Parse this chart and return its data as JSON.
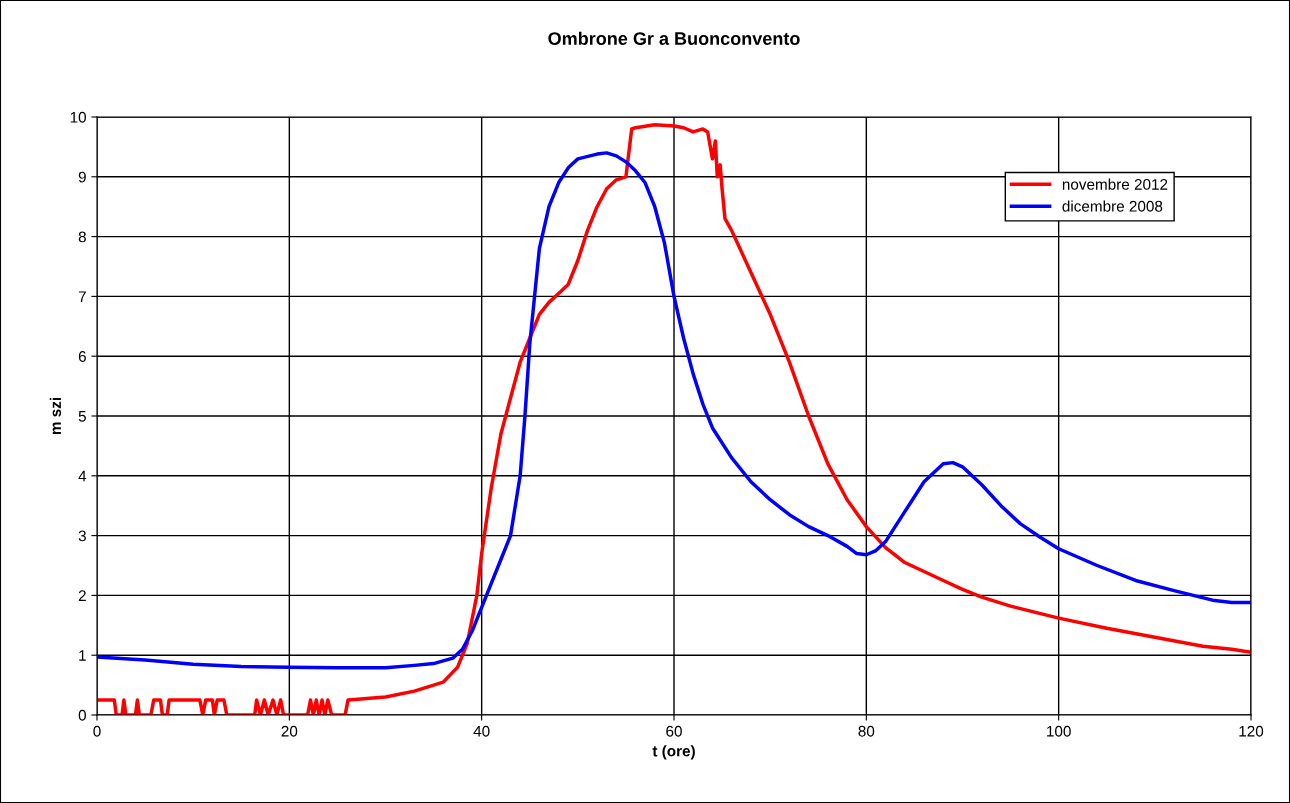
{
  "chart_data": {
    "type": "line",
    "title": "Ombrone Gr a Buonconvento",
    "xlabel": "t (ore)",
    "ylabel": "m szi",
    "xlim": [
      0,
      120
    ],
    "xticks": [
      0,
      20,
      40,
      60,
      80,
      100,
      120
    ],
    "ylim": [
      0,
      10
    ],
    "yticks": [
      0,
      1,
      2,
      3,
      4,
      5,
      6,
      7,
      8,
      9,
      10
    ],
    "grid": true,
    "legend": "top right",
    "marker": "none",
    "line_style": "solid",
    "series": [
      {
        "name": "novembre 2012",
        "color": "#ff0000",
        "x": [
          0,
          1.8,
          2.0,
          2.6,
          2.8,
          3.0,
          4.0,
          4.2,
          4.4,
          5.6,
          5.9,
          6.6,
          6.8,
          7.3,
          7.5,
          10.7,
          11.0,
          11.3,
          12.0,
          12.2,
          12.5,
          13.2,
          13.5,
          16.4,
          16.6,
          17.0,
          17.4,
          17.8,
          18.3,
          18.7,
          19.1,
          19.4,
          21.9,
          22.2,
          22.5,
          22.8,
          23.1,
          23.4,
          23.7,
          24.0,
          24.4,
          25.8,
          26.1,
          30,
          33,
          36,
          37.5,
          38.5,
          39.5,
          40,
          41,
          42,
          43,
          44,
          45,
          46,
          47,
          48,
          49,
          50,
          51,
          52,
          53,
          54,
          55,
          55.3,
          55.6,
          56,
          58,
          60,
          61,
          62,
          63,
          63.5,
          64,
          64.3,
          64.5,
          64.8,
          65,
          65.3,
          66,
          68,
          70,
          72,
          74,
          76,
          78,
          80,
          82,
          84,
          86,
          88,
          90,
          92,
          95,
          100,
          105,
          110,
          115,
          118,
          120
        ],
        "values": [
          0.25,
          0.25,
          0,
          0,
          0.25,
          0,
          0,
          0.25,
          0,
          0,
          0.25,
          0.25,
          0,
          0,
          0.25,
          0.25,
          0,
          0.25,
          0.25,
          0,
          0.25,
          0.25,
          0,
          0,
          0.25,
          0,
          0.25,
          0,
          0.25,
          0,
          0.25,
          0,
          0,
          0.25,
          0,
          0.25,
          0,
          0.25,
          0,
          0.25,
          0,
          0,
          0.25,
          0.3,
          0.4,
          0.55,
          0.8,
          1.2,
          2.0,
          2.7,
          3.8,
          4.7,
          5.3,
          5.9,
          6.3,
          6.7,
          6.9,
          7.05,
          7.2,
          7.6,
          8.1,
          8.5,
          8.8,
          8.95,
          9.0,
          9.4,
          9.8,
          9.82,
          9.87,
          9.85,
          9.82,
          9.75,
          9.8,
          9.75,
          9.3,
          9.6,
          9.0,
          9.2,
          8.8,
          8.3,
          8.1,
          7.4,
          6.7,
          5.9,
          5.0,
          4.2,
          3.6,
          3.15,
          2.8,
          2.55,
          2.4,
          2.25,
          2.1,
          1.97,
          1.82,
          1.62,
          1.45,
          1.3,
          1.15,
          1.1,
          1.05
        ]
      },
      {
        "name": "dicembre 2008",
        "color": "#0000ff",
        "x": [
          0,
          5,
          10,
          15,
          20,
          25,
          30,
          33,
          35,
          37,
          38,
          39,
          40,
          41,
          42,
          43,
          44,
          44.5,
          45,
          45.5,
          46,
          47,
          48,
          49,
          50,
          52,
          53,
          54,
          55,
          56,
          57,
          58,
          59,
          60,
          61,
          62,
          63,
          64,
          66,
          68,
          70,
          72,
          74,
          76,
          78,
          79,
          80,
          81,
          82,
          84,
          86,
          88,
          89,
          90,
          92,
          94,
          96,
          98,
          100,
          104,
          108,
          112,
          116,
          118,
          120
        ],
        "values": [
          0.97,
          0.92,
          0.85,
          0.81,
          0.8,
          0.79,
          0.79,
          0.83,
          0.86,
          0.95,
          1.1,
          1.4,
          1.8,
          2.2,
          2.6,
          3.0,
          4.0,
          5.0,
          6.2,
          7.0,
          7.8,
          8.5,
          8.9,
          9.15,
          9.3,
          9.38,
          9.4,
          9.35,
          9.25,
          9.1,
          8.9,
          8.5,
          7.9,
          7.0,
          6.3,
          5.7,
          5.2,
          4.8,
          4.3,
          3.9,
          3.6,
          3.35,
          3.15,
          3.0,
          2.82,
          2.7,
          2.68,
          2.75,
          2.9,
          3.4,
          3.9,
          4.2,
          4.22,
          4.15,
          3.85,
          3.5,
          3.2,
          2.98,
          2.78,
          2.5,
          2.25,
          2.08,
          1.92,
          1.88,
          1.88
        ]
      }
    ]
  }
}
